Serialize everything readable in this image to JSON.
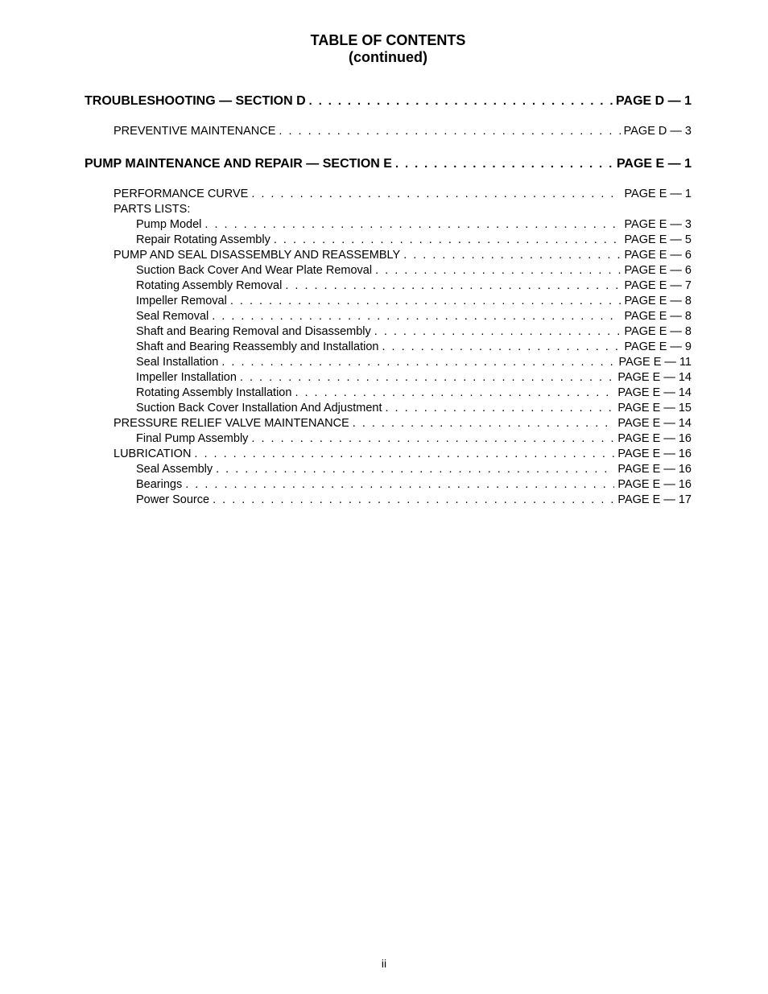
{
  "title": {
    "line1": "TABLE OF CONTENTS",
    "line2": "(continued)"
  },
  "page_number": "ii",
  "entries": [
    {
      "label": "TROUBLESHOOTING — SECTION D",
      "page": "PAGE D — 1",
      "level": "section"
    },
    {
      "label": "PREVENTIVE MAINTENANCE",
      "page": "PAGE D — 3",
      "level": 1
    },
    {
      "label": "PUMP MAINTENANCE AND REPAIR — SECTION E",
      "page": "PAGE E — 1",
      "level": "section"
    },
    {
      "label": "PERFORMANCE CURVE",
      "page": "PAGE E — 1",
      "level": 1
    },
    {
      "label": "PARTS LISTS:",
      "page": null,
      "level": 1
    },
    {
      "label": "Pump Model",
      "page": "PAGE E — 3",
      "level": 2
    },
    {
      "label": "Repair Rotating Assembly",
      "page": "PAGE E — 5",
      "level": 2
    },
    {
      "label": "PUMP AND SEAL DISASSEMBLY AND REASSEMBLY",
      "page": "PAGE E — 6",
      "level": 1
    },
    {
      "label": "Suction Back Cover And Wear Plate Removal",
      "page": "PAGE E — 6",
      "level": 2
    },
    {
      "label": "Rotating Assembly Removal",
      "page": "PAGE E — 7",
      "level": 2
    },
    {
      "label": "Impeller Removal",
      "page": "PAGE E — 8",
      "level": 2
    },
    {
      "label": "Seal Removal",
      "page": "PAGE E — 8",
      "level": 2
    },
    {
      "label": "Shaft and Bearing Removal and Disassembly",
      "page": "PAGE E — 8",
      "level": 2
    },
    {
      "label": "Shaft and Bearing Reassembly and Installation",
      "page": "PAGE E — 9",
      "level": 2
    },
    {
      "label": "Seal Installation",
      "page": "PAGE E — 11",
      "level": 2
    },
    {
      "label": "Impeller Installation",
      "page": "PAGE E — 14",
      "level": 2
    },
    {
      "label": "Rotating Assembly Installation",
      "page": "PAGE E — 14",
      "level": 2
    },
    {
      "label": "Suction Back Cover Installation And Adjustment",
      "page": "PAGE E — 15",
      "level": 2
    },
    {
      "label": "PRESSURE RELIEF VALVE MAINTENANCE",
      "page": "PAGE E — 14",
      "level": 1
    },
    {
      "label": "Final Pump Assembly",
      "page": "PAGE E — 16",
      "level": 2
    },
    {
      "label": "LUBRICATION",
      "page": "PAGE E — 16",
      "level": 1
    },
    {
      "label": "Seal Assembly",
      "page": "PAGE E — 16",
      "level": 2
    },
    {
      "label": "Bearings",
      "page": "PAGE E — 16",
      "level": 2
    },
    {
      "label": "Power Source",
      "page": "PAGE E — 17",
      "level": 2
    }
  ]
}
